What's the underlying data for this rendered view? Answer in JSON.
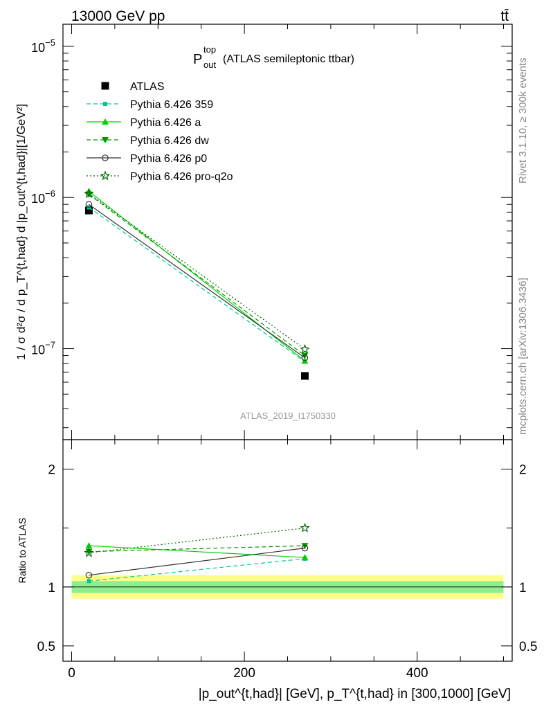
{
  "header": {
    "energy_label": "13000 GeV pp",
    "process_label": "tt̄"
  },
  "side_labels": {
    "rivet": "Rivet 3.1.10, ≥ 300k events",
    "mcplots": "mcplots.cern.ch [arXiv:1306.3436]"
  },
  "chart_data": [
    {
      "type": "line",
      "panel": "main",
      "title": "(ATLAS semileptonic ttbar)",
      "title_symbol": {
        "base": "P",
        "sup": "top",
        "sub": "out"
      },
      "analysis_label": "ATLAS_2019_I1750330",
      "ylabel": "1 / σ d²σ / d p_T^{t,had} d |p_out^{t,had}|[1/GeV²]",
      "yscale": "log",
      "ylim": [
        2.5e-08,
        1.4e-05
      ],
      "xlim": [
        -10,
        510
      ],
      "ytick_labels": [
        {
          "value": 1e-05,
          "base": "10",
          "exp": "−5"
        },
        {
          "value": 1e-06,
          "base": "10",
          "exp": "−6"
        },
        {
          "value": 1e-07,
          "base": "10",
          "exp": "−7"
        }
      ],
      "series": [
        {
          "name": "ATLAS",
          "color": "#000000",
          "style": "none",
          "marker": "square-filled",
          "x": [
            20,
            270
          ],
          "values": [
            8.2e-07,
            6.6e-08
          ]
        },
        {
          "name": "Pythia 6.426 359",
          "color": "#00c896",
          "style": "dashed",
          "marker": "square-small",
          "x": [
            20,
            270
          ],
          "values": [
            8.6e-07,
            8.2e-08
          ]
        },
        {
          "name": "Pythia 6.426 a",
          "color": "#00d000",
          "style": "solid",
          "marker": "triangle-up",
          "x": [
            20,
            270
          ],
          "values": [
            1.1e-06,
            8.3e-08
          ]
        },
        {
          "name": "Pythia 6.426 dw",
          "color": "#009900",
          "style": "dashed",
          "marker": "triangle-down",
          "x": [
            20,
            270
          ],
          "values": [
            1.05e-06,
            9e-08
          ]
        },
        {
          "name": "Pythia 6.426 p0",
          "color": "#333333",
          "style": "solid",
          "marker": "circle-open",
          "x": [
            20,
            270
          ],
          "values": [
            9e-07,
            8.7e-08
          ]
        },
        {
          "name": "Pythia 6.426 pro-q2o",
          "color": "#006600",
          "style": "dotted",
          "marker": "star-open",
          "x": [
            20,
            270
          ],
          "values": [
            1.06e-06,
            9.9e-08
          ]
        }
      ]
    },
    {
      "type": "line",
      "panel": "ratio",
      "ylabel": "Ratio to ATLAS",
      "xlabel": "|p_out^{t,had}| [GeV], p_T^{t,had} in [300,1000] [GeV]",
      "xlim": [
        -10,
        510
      ],
      "ylim": [
        0.37,
        2.25
      ],
      "xtick_labels": [
        {
          "value": 0,
          "label": "0"
        },
        {
          "value": 200,
          "label": "200"
        },
        {
          "value": 400,
          "label": "400"
        }
      ],
      "ytick_labels": [
        {
          "value": 2,
          "label": "2"
        },
        {
          "value": 1,
          "label": "1"
        },
        {
          "value": 0.5,
          "label": "0.5"
        }
      ],
      "bands": [
        {
          "name": "total-uncertainty",
          "color": "#ffff88",
          "lo": 0.9,
          "hi": 1.1
        },
        {
          "name": "stat-uncertainty",
          "color": "#90ee90",
          "lo": 0.95,
          "hi": 1.05
        }
      ],
      "series": [
        {
          "name": "Pythia 6.426 359",
          "color": "#00c896",
          "style": "dashed",
          "marker": "square-small",
          "x": [
            20,
            270
          ],
          "values": [
            1.05,
            1.24
          ]
        },
        {
          "name": "Pythia 6.426 a",
          "color": "#00d000",
          "style": "solid",
          "marker": "triangle-up",
          "x": [
            20,
            270
          ],
          "values": [
            1.35,
            1.25
          ]
        },
        {
          "name": "Pythia 6.426 dw",
          "color": "#009900",
          "style": "dashed",
          "marker": "triangle-down",
          "x": [
            20,
            270
          ],
          "values": [
            1.3,
            1.35
          ]
        },
        {
          "name": "Pythia 6.426 p0",
          "color": "#333333",
          "style": "solid",
          "marker": "circle-open",
          "x": [
            20,
            270
          ],
          "values": [
            1.1,
            1.33
          ]
        },
        {
          "name": "Pythia 6.426 pro-q2o",
          "color": "#006600",
          "style": "dotted",
          "marker": "star-open",
          "x": [
            20,
            270
          ],
          "values": [
            1.29,
            1.5
          ]
        }
      ]
    }
  ]
}
